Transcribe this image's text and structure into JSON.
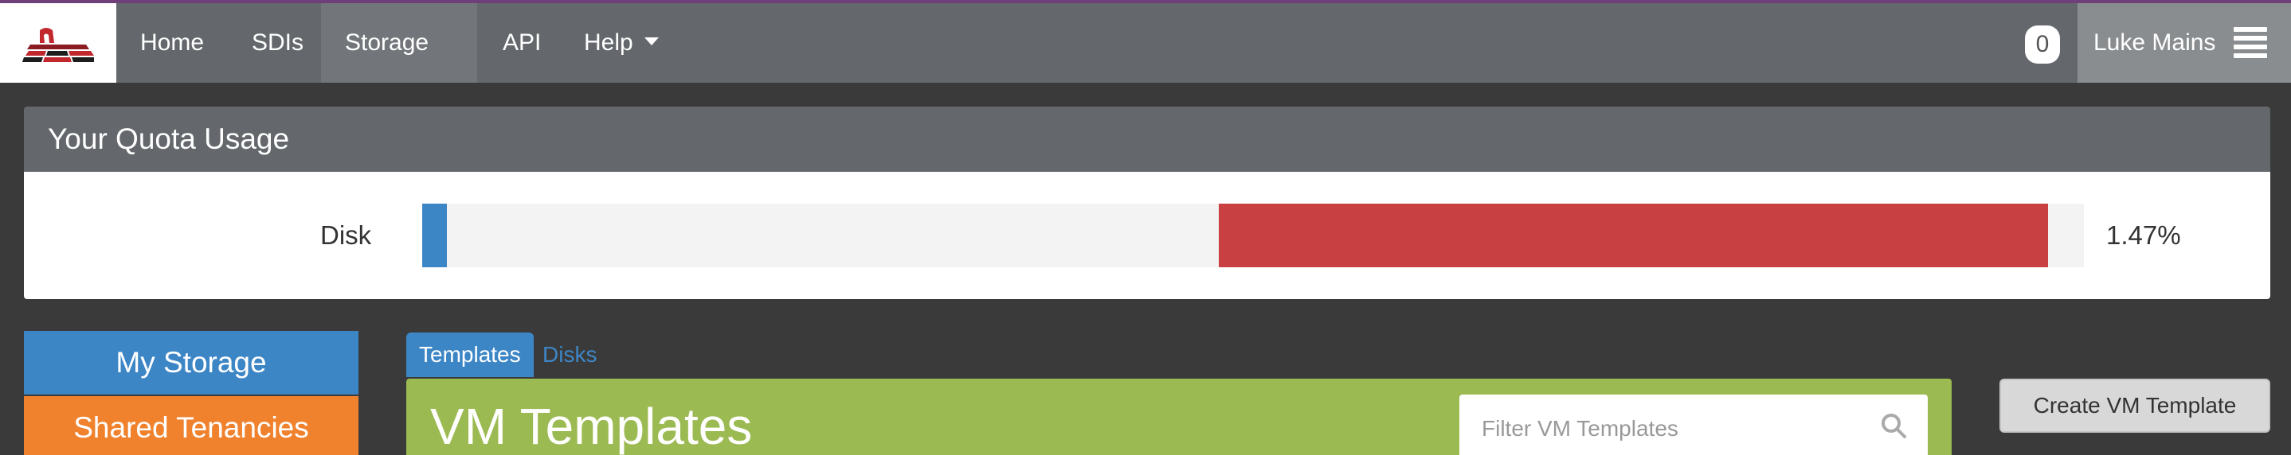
{
  "nav": {
    "items": [
      {
        "label": "Home"
      },
      {
        "label": "SDIs"
      },
      {
        "label": "Storage",
        "dropdown": true
      },
      {
        "label": "API"
      },
      {
        "label": "Help",
        "dropdown": true
      }
    ],
    "notification_count": "0",
    "user_name": "Luke Mains",
    "icons": {
      "brand": "logo-icon",
      "menu": "hamburger-menu-icon",
      "dropdown": "caret-down-icon"
    },
    "colors": {
      "navbar": "#64686c",
      "accent_top": "#6f3f7a"
    }
  },
  "quota": {
    "title": "Your Quota Usage",
    "rows": [
      {
        "label": "Disk",
        "used_fraction": 0.0147,
        "reserved_start_fraction": 0.4793,
        "reserved_end_fraction": 0.9784,
        "percent_text": "1.47%"
      }
    ],
    "colors": {
      "used": "#3d86c6",
      "reserved": "#c94043",
      "track": "#f3f3f3"
    }
  },
  "sidebar": {
    "buttons": [
      {
        "label": "My Storage",
        "color": "#3d86c6"
      },
      {
        "label": "Shared Tenancies",
        "color": "#f0822e"
      }
    ]
  },
  "main": {
    "tabs": [
      {
        "label": "Templates",
        "active": true
      },
      {
        "label": "Disks",
        "active": false
      }
    ],
    "panel_title": "VM Templates",
    "panel_color": "#9cba52",
    "filter_placeholder": "Filter VM Templates",
    "search_icon": "search-icon",
    "create_button": "Create VM Template"
  }
}
